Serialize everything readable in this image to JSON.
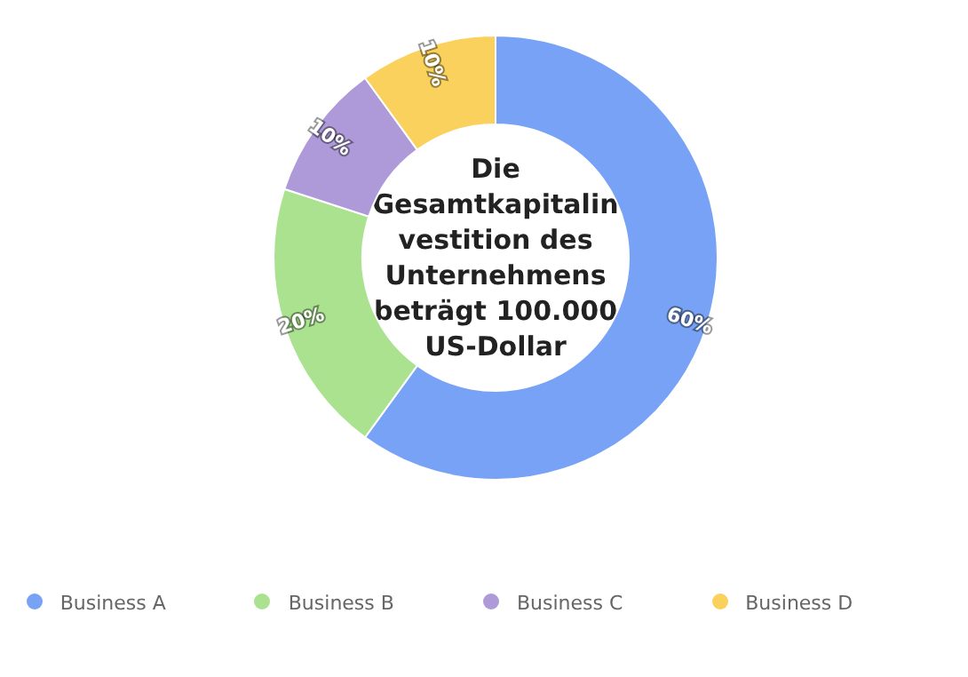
{
  "chart_data": {
    "type": "donut",
    "title": "Die Gesamtkapitalinvestition des Unternehmens beträgt 100.000 US-Dollar",
    "categories": [
      "Business A",
      "Business B",
      "Business C",
      "Business D"
    ],
    "values": [
      60,
      20,
      10,
      10
    ],
    "colors": [
      "#78a2f5",
      "#abe290",
      "#ae9ad9",
      "#f9d15c"
    ],
    "value_labels": [
      "60%",
      "20%",
      "10%",
      "10%"
    ],
    "legend": "bottom"
  }
}
